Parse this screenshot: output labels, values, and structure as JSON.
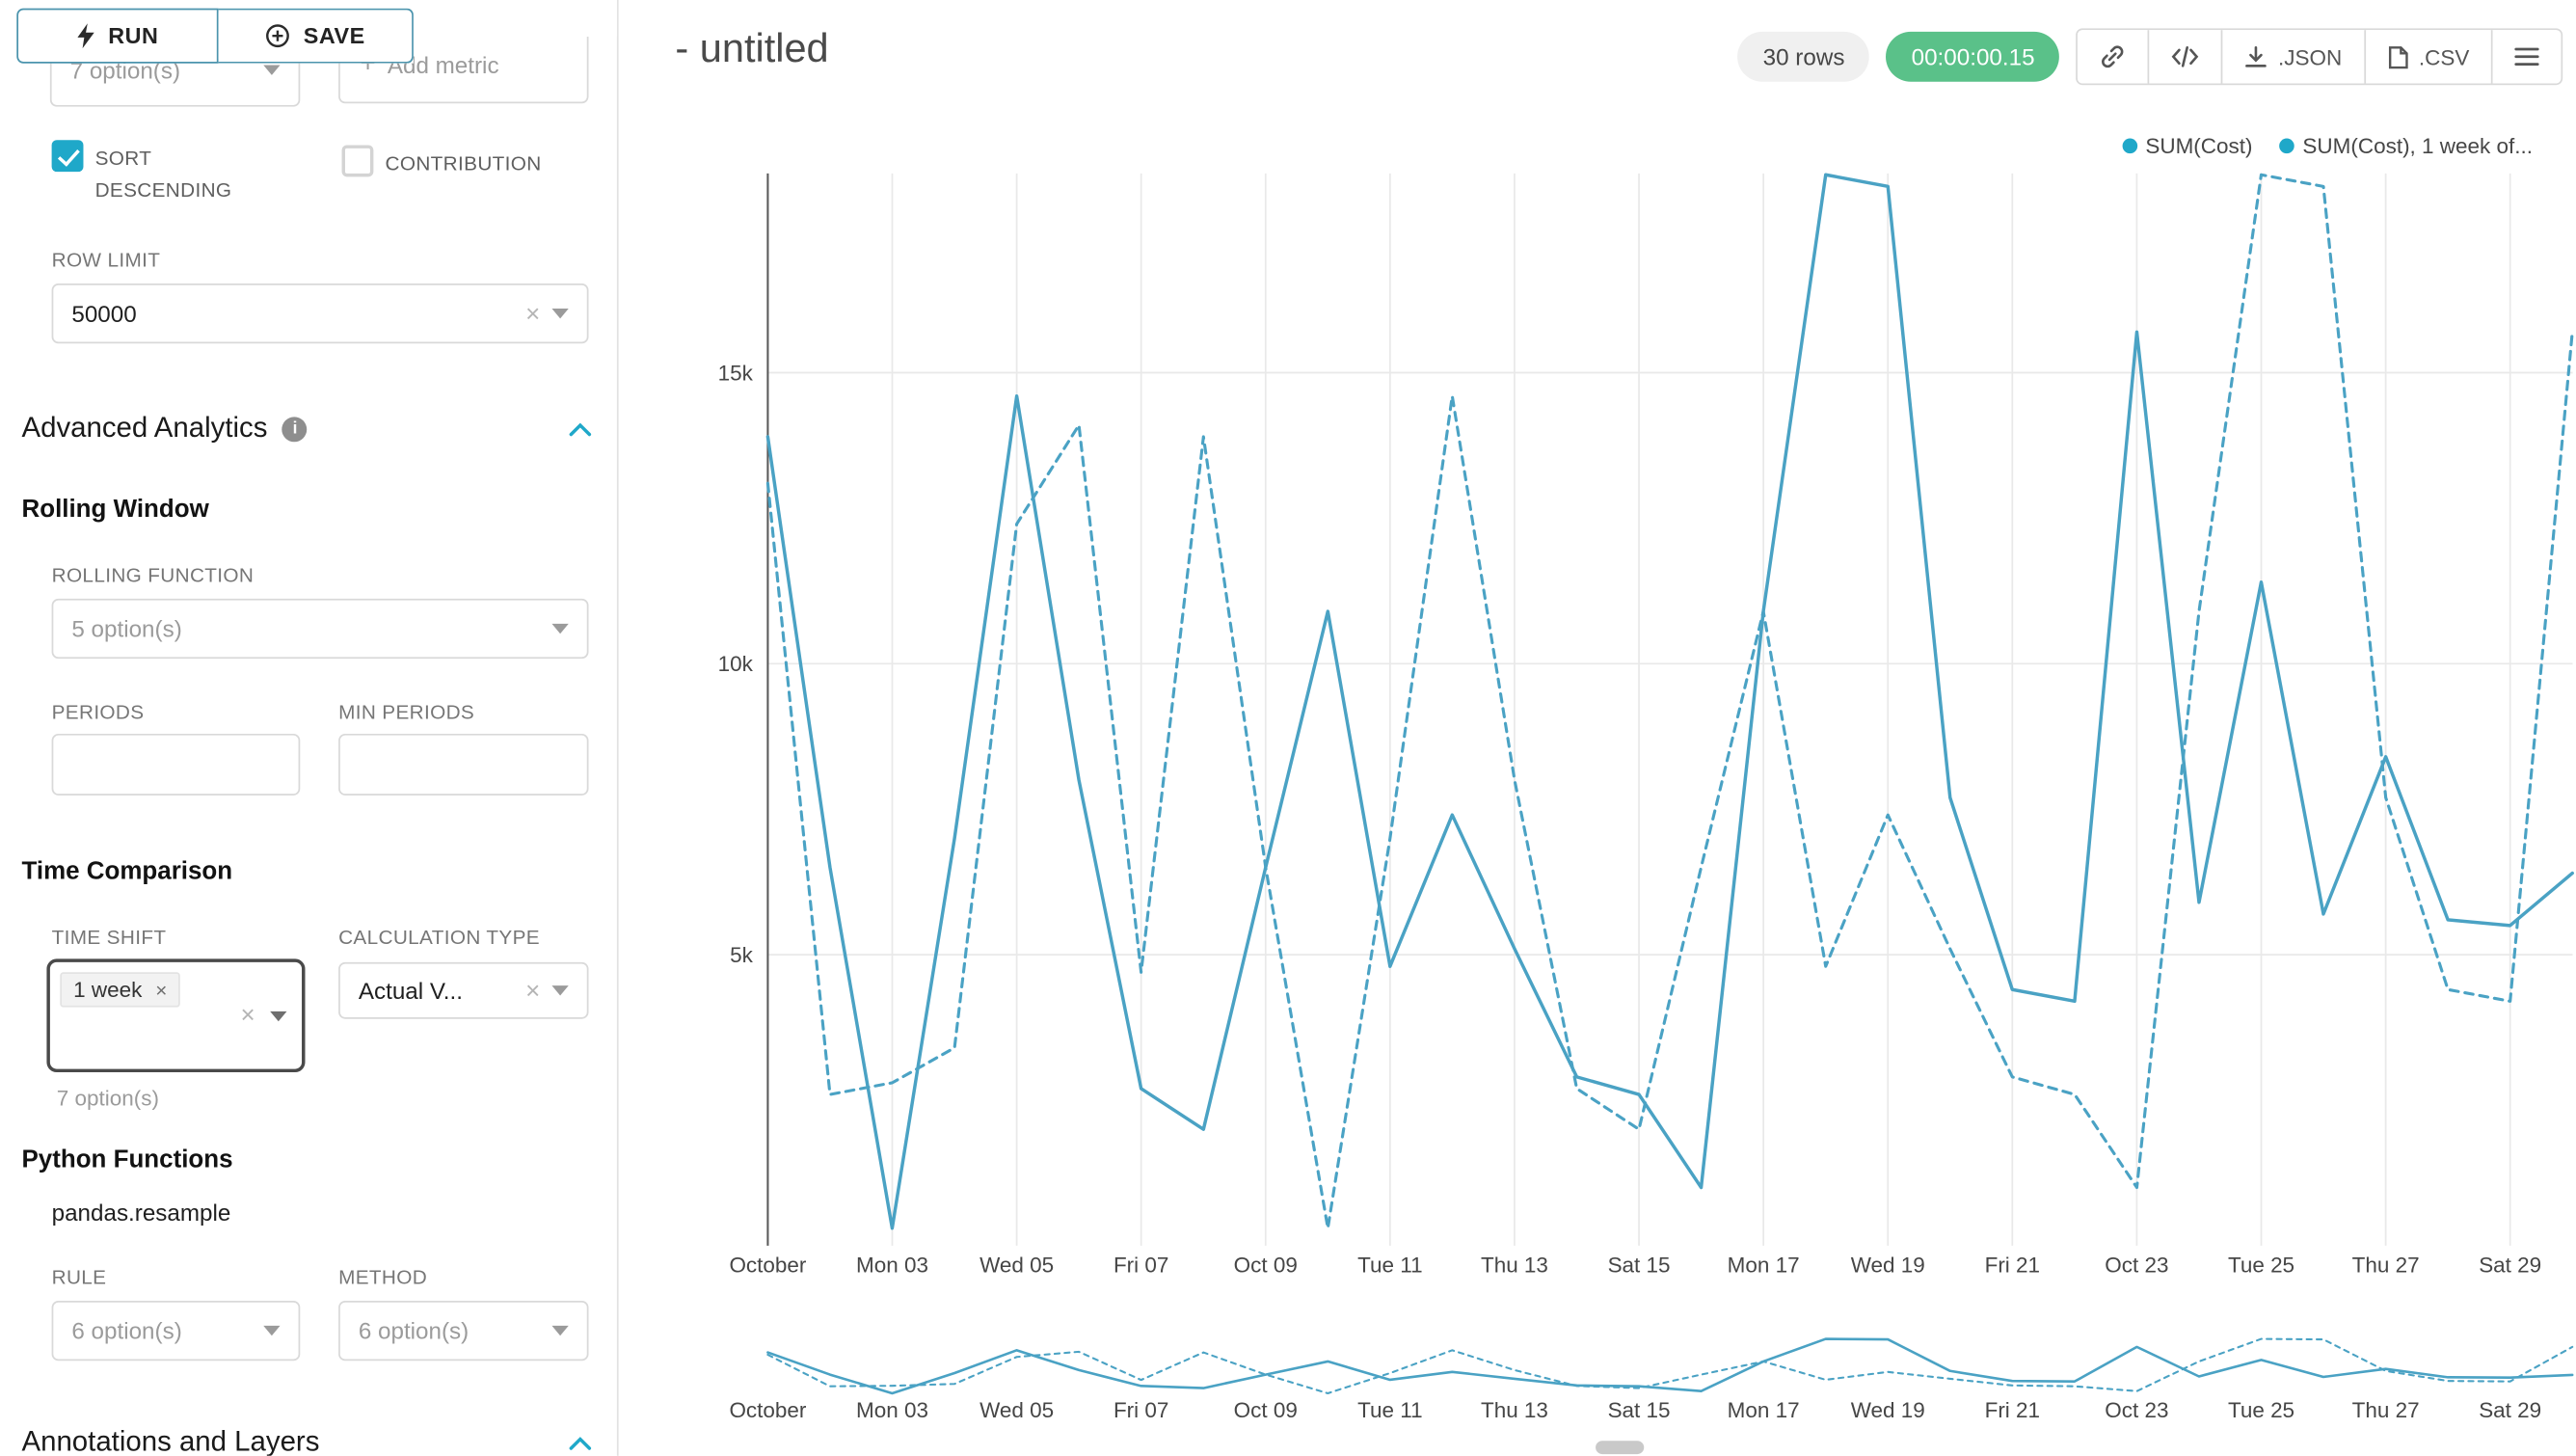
{
  "colors": {
    "accent": "#1FA8C9",
    "timer_bg": "#5ac189",
    "line": "#4aa2c4"
  },
  "icons": {
    "lightning-icon": "run bolt",
    "plus-circle-icon": "save",
    "plus-icon": "+",
    "info-icon": "i",
    "chevron-up-icon": "collapse",
    "chevron-down-icon": "caret",
    "clear-icon": "x",
    "link-icon": "chain link",
    "code-icon": "</>",
    "download-icon": "download arrow",
    "file-icon": "document",
    "menu-icon": "hamburger",
    "legend-dot": "filled circle"
  },
  "sidebar": {
    "run_label": "RUN",
    "save_label": "SAVE",
    "metric_select_value": "7 option(s)",
    "add_metric_label": "Add metric",
    "sort_descending_label": "SORT DESCENDING",
    "contribution_label": "CONTRIBUTION",
    "row_limit_label": "ROW LIMIT",
    "row_limit_value": "50000",
    "advanced": {
      "title": "Advanced Analytics",
      "rolling_window": "Rolling Window",
      "rolling_function_label": "ROLLING FUNCTION",
      "rolling_function_value": "5 option(s)",
      "periods_label": "PERIODS",
      "min_periods_label": "MIN PERIODS",
      "time_comparison": "Time Comparison",
      "time_shift_label": "TIME SHIFT",
      "time_shift_tag": "1 week",
      "time_shift_hint": "7 option(s)",
      "calculation_type_label": "CALCULATION TYPE",
      "calculation_type_value": "Actual V...",
      "python_functions": "Python Functions",
      "pandas_resample": "pandas.resample",
      "rule_label": "RULE",
      "rule_value": "6 option(s)",
      "method_label": "METHOD",
      "method_value": "6 option(s)"
    },
    "annotations_title": "Annotations and Layers"
  },
  "header": {
    "title": "- untitled",
    "rows_badge": "30 rows",
    "timer": "00:00:00.15",
    "json_label": ".JSON",
    "csv_label": ".CSV"
  },
  "chart_data": {
    "type": "line",
    "title": "- untitled",
    "y_unit": "k (thousands)",
    "ylim": [
      0,
      18.5
    ],
    "y_ticks": [
      "5k",
      "10k",
      "15k"
    ],
    "y_tick_values": [
      5,
      10,
      15
    ],
    "x_labels": [
      "October",
      "Mon 03",
      "Wed 05",
      "Fri 07",
      "Oct 09",
      "Tue 11",
      "Thu 13",
      "Sat 15",
      "Mon 17",
      "Wed 19",
      "Fri 21",
      "Oct 23",
      "Tue 25",
      "Thu 27",
      "Sat 29"
    ],
    "x_tick_days": [
      1,
      3,
      5,
      7,
      9,
      11,
      13,
      15,
      17,
      19,
      21,
      23,
      25,
      27,
      29
    ],
    "x_range": "Oct 01 - Oct 30, daily",
    "legend_position": "top-right",
    "grid": true,
    "color": "#4aa2c4",
    "series": [
      {
        "name": "SUM(Cost)",
        "style": "solid",
        "values": [
          13.9,
          6.5,
          0.3,
          7.0,
          14.6,
          8.0,
          2.7,
          2.0,
          6.5,
          10.9,
          4.8,
          7.4,
          5.1,
          2.9,
          2.6,
          1.0,
          10.9,
          18.4,
          18.2,
          7.7,
          4.4,
          4.2,
          15.7,
          5.9,
          11.4,
          5.7,
          8.4,
          5.6,
          5.5,
          6.4
        ]
      },
      {
        "name": "SUM(Cost), 1 week of...",
        "style": "dashed",
        "values": [
          13.1,
          2.6,
          2.8,
          3.4,
          12.4,
          14.1,
          4.7,
          13.9,
          6.5,
          0.3,
          7.0,
          14.6,
          8.0,
          2.7,
          2.0,
          6.5,
          10.9,
          4.8,
          7.4,
          5.1,
          2.9,
          2.6,
          1.0,
          10.9,
          18.4,
          18.2,
          7.7,
          4.4,
          4.2,
          15.7
        ]
      }
    ]
  }
}
